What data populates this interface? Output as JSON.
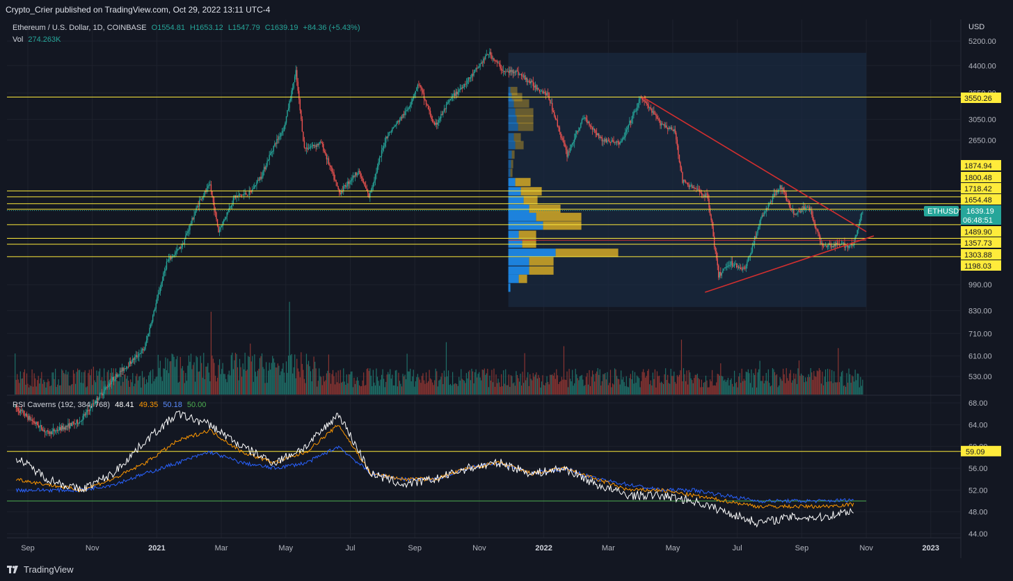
{
  "header": {
    "published": "Crypto_Crier published on TradingView.com, Oct 29, 2022 13:11 UTC-4"
  },
  "legend": {
    "symbol": "Ethereum / U.S. Dollar, 1D, COINBASE",
    "open": "O1554.81",
    "high": "H1653.12",
    "low": "L1547.79",
    "close": "C1639.19",
    "change": "+84.36 (+5.43%)",
    "vol_label": "Vol",
    "vol_value": "274.263K"
  },
  "rsi_legend": {
    "name": "RSI Caverns (192, 384, 768)",
    "v1": "48.41",
    "v2": "49.35",
    "v3": "50.18",
    "v4": "50.00"
  },
  "footer": {
    "brand": "TradingView"
  },
  "colors": {
    "background": "#131722",
    "up": "#26a69a",
    "down": "#ef5350",
    "level_line": "#ffeb3b",
    "label_bg": "#ffeb3b",
    "trendline": "#d32f2f",
    "rsi_white": "#ffffff",
    "rsi_orange": "#ff9800",
    "rsi_blue": "#2962ff",
    "rsi_green": "#4caf50",
    "vp_blue": "#1e88e5",
    "vp_gold": "#c9a227"
  },
  "chart_data": [
    {
      "type": "candlestick",
      "title": "Ethereum / U.S. Dollar, 1D, COINBASE",
      "yscale": "log",
      "ylabel": "USD",
      "ylim": [
        470,
        5800
      ],
      "y_ticks": [
        "5200.00",
        "4400.00",
        "3650.00",
        "3050.00",
        "2650.00",
        "990.00",
        "830.00",
        "710.00",
        "610.00",
        "530.00"
      ],
      "x_ticks": [
        "Sep",
        "Nov",
        "2021",
        "Mar",
        "May",
        "Jul",
        "Sep",
        "Nov",
        "2022",
        "Mar",
        "May",
        "Jul",
        "Sep",
        "Nov",
        "2023"
      ],
      "price_levels": [
        3550.26,
        1874.94,
        1800.48,
        1718.42,
        1654.48,
        1489.9,
        1357.73,
        1303.88,
        1198.03
      ],
      "last_price": {
        "symbol": "ETHUSD",
        "value": "1639.19",
        "countdown": "06:48:51"
      },
      "series": [
        {
          "date": "2020-09",
          "close": 380
        },
        {
          "date": "2020-10",
          "close": 390
        },
        {
          "date": "2020-11",
          "close": 500
        },
        {
          "date": "2020-12",
          "close": 620
        },
        {
          "date": "2021-01",
          "close": 1300
        },
        {
          "date": "2021-02",
          "close": 1800
        },
        {
          "date": "2021-03",
          "close": 1900
        },
        {
          "date": "2021-04",
          "close": 2700
        },
        {
          "date": "2021-05",
          "close": 4100
        },
        {
          "date": "2021-06",
          "close": 2300
        },
        {
          "date": "2021-07",
          "close": 2200
        },
        {
          "date": "2021-08",
          "close": 3300
        },
        {
          "date": "2021-09",
          "close": 3600
        },
        {
          "date": "2021-10",
          "close": 4200
        },
        {
          "date": "2021-11",
          "close": 4700
        },
        {
          "date": "2021-12",
          "close": 3800
        },
        {
          "date": "2022-01",
          "close": 2600
        },
        {
          "date": "2022-02",
          "close": 2900
        },
        {
          "date": "2022-03",
          "close": 3300
        },
        {
          "date": "2022-04",
          "close": 3000
        },
        {
          "date": "2022-05",
          "close": 1950
        },
        {
          "date": "2022-06",
          "close": 1050
        },
        {
          "date": "2022-07",
          "close": 1650
        },
        {
          "date": "2022-08",
          "close": 1600
        },
        {
          "date": "2022-09",
          "close": 1330
        },
        {
          "date": "2022-10",
          "close": 1600
        }
      ],
      "volume_profile": [
        {
          "price": 3700,
          "blue": 3,
          "gold": 10
        },
        {
          "price": 3550,
          "blue": 5,
          "gold": 15
        },
        {
          "price": 3400,
          "blue": 8,
          "gold": 22
        },
        {
          "price": 3200,
          "blue": 10,
          "gold": 26
        },
        {
          "price": 3050,
          "blue": 12,
          "gold": 24
        },
        {
          "price": 2900,
          "blue": 14,
          "gold": 22
        },
        {
          "price": 2700,
          "blue": 8,
          "gold": 10
        },
        {
          "price": 2560,
          "blue": 10,
          "gold": 12
        },
        {
          "price": 2400,
          "blue": 5,
          "gold": 4
        },
        {
          "price": 2250,
          "blue": 4,
          "gold": 3
        },
        {
          "price": 2120,
          "blue": 3,
          "gold": 3
        },
        {
          "price": 1990,
          "blue": 10,
          "gold": 22
        },
        {
          "price": 1870,
          "blue": 18,
          "gold": 30
        },
        {
          "price": 1760,
          "blue": 22,
          "gold": 20
        },
        {
          "price": 1660,
          "blue": 30,
          "gold": 45
        },
        {
          "price": 1570,
          "blue": 40,
          "gold": 65
        },
        {
          "price": 1480,
          "blue": 50,
          "gold": 55
        },
        {
          "price": 1390,
          "blue": 15,
          "gold": 25
        },
        {
          "price": 1310,
          "blue": 20,
          "gold": 20
        },
        {
          "price": 1230,
          "blue": 68,
          "gold": 90
        },
        {
          "price": 1160,
          "blue": 30,
          "gold": 35
        },
        {
          "price": 1090,
          "blue": 30,
          "gold": 35
        },
        {
          "price": 1030,
          "blue": 15,
          "gold": 12
        },
        {
          "price": 970,
          "blue": 3,
          "gold": 0
        }
      ]
    },
    {
      "type": "line",
      "title": "RSI Caverns (192, 384, 768)",
      "ylim": [
        43,
        69
      ],
      "y_ticks": [
        "68.00",
        "64.00",
        "60.00",
        "56.00",
        "52.00",
        "48.00",
        "44.00"
      ],
      "levels": [
        59.09,
        50.0
      ],
      "series": [
        {
          "name": "48.41",
          "color": "#ffffff",
          "values": [
            58,
            54,
            52,
            55,
            61,
            66,
            64,
            60,
            57,
            60,
            66,
            55,
            53,
            54,
            56,
            57,
            55,
            56,
            53,
            51,
            51,
            50,
            48,
            46,
            47,
            47,
            48.4
          ]
        },
        {
          "name": "49.35",
          "color": "#ff9800",
          "values": [
            54,
            53,
            52,
            54,
            57,
            61,
            63,
            59,
            57,
            59,
            64,
            55,
            54,
            54,
            56,
            57,
            55,
            56,
            54,
            52,
            52,
            51,
            50,
            49,
            49,
            49,
            49.4
          ]
        },
        {
          "name": "50.18",
          "color": "#2962ff",
          "values": [
            52,
            52,
            52,
            53,
            55,
            57,
            59,
            57,
            56,
            57,
            60,
            55,
            54,
            54,
            56,
            57,
            55,
            56,
            54,
            53,
            52,
            52,
            51,
            50,
            50,
            50,
            50.2
          ]
        }
      ]
    }
  ]
}
